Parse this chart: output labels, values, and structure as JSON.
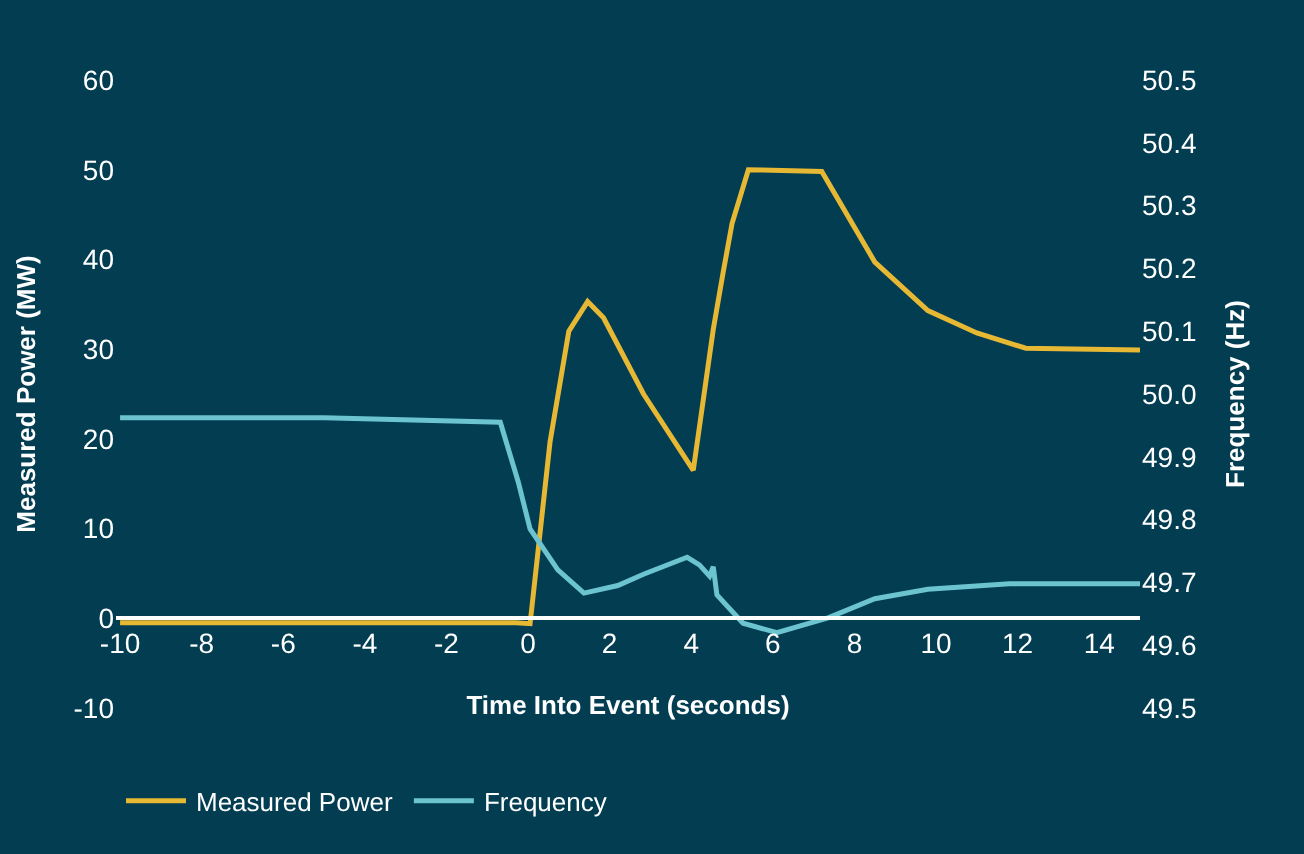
{
  "chart_data": {
    "type": "line",
    "xlabel": "Time Into Event (seconds)",
    "ylabel": "Measured Power (MW)",
    "y2label": "Frequency (Hz)",
    "xlim": [
      -10.1,
      15
    ],
    "xticks": [
      -10,
      -8,
      -6,
      -4,
      -2,
      0,
      2,
      4,
      6,
      8,
      10,
      12,
      14
    ],
    "ylim": [
      -10,
      60
    ],
    "yticks": [
      -10,
      0,
      10,
      20,
      30,
      40,
      50,
      60
    ],
    "y2lim": [
      49.5,
      50.5
    ],
    "y2ticks": [
      {
        "value": 49.5,
        "label": "49.5"
      },
      {
        "value": 49.6,
        "label": "49.6"
      },
      {
        "value": 49.7,
        "label": "49.7"
      },
      {
        "value": 49.8,
        "label": "49.8"
      },
      {
        "value": 49.9,
        "label": "49.9"
      },
      {
        "value": 50.0,
        "label": "50.0"
      },
      {
        "value": 50.1,
        "label": "50.1"
      },
      {
        "value": 50.2,
        "label": "50.2"
      },
      {
        "value": 50.3,
        "label": "50.3"
      },
      {
        "value": 50.4,
        "label": "50.4"
      },
      {
        "value": 50.5,
        "label": "50.5"
      }
    ],
    "legend": "bottom",
    "grid": false,
    "marker": "none",
    "line_style": "solid",
    "series": [
      {
        "name": "Measured Power",
        "color": "#e6b833",
        "x": [
          -10,
          -5,
          -0.3,
          0.05,
          0.54,
          1.0,
          1.46,
          1.85,
          2.83,
          4.05,
          4.54,
          4.78,
          5.0,
          5.4,
          7.2,
          8.5,
          9.8,
          11,
          12.2,
          15
        ],
        "values": [
          -0.5,
          -0.5,
          -0.5,
          -0.6,
          19.7,
          32,
          35.3,
          33.5,
          25,
          16.5,
          32.2,
          38.5,
          44,
          50,
          49.8,
          39.7,
          34.3,
          31.8,
          30.1,
          29.9
        ]
      },
      {
        "name": "Frequency",
        "color": "#6cc4d0",
        "axis": "y2",
        "x": [
          -10,
          -5,
          -0.68,
          -0.24,
          0.05,
          0.73,
          1.37,
          2.2,
          2.83,
          3.9,
          4.2,
          4.45,
          4.54,
          4.63,
          5.27,
          6.1,
          7.37,
          8.5,
          9.8,
          11.8,
          15
        ],
        "values": [
          49.962,
          49.962,
          49.955,
          49.86,
          49.785,
          49.72,
          49.683,
          49.695,
          49.713,
          49.74,
          49.728,
          49.71,
          49.725,
          49.68,
          49.635,
          49.62,
          49.644,
          49.674,
          49.689,
          49.698,
          49.698
        ]
      }
    ]
  }
}
